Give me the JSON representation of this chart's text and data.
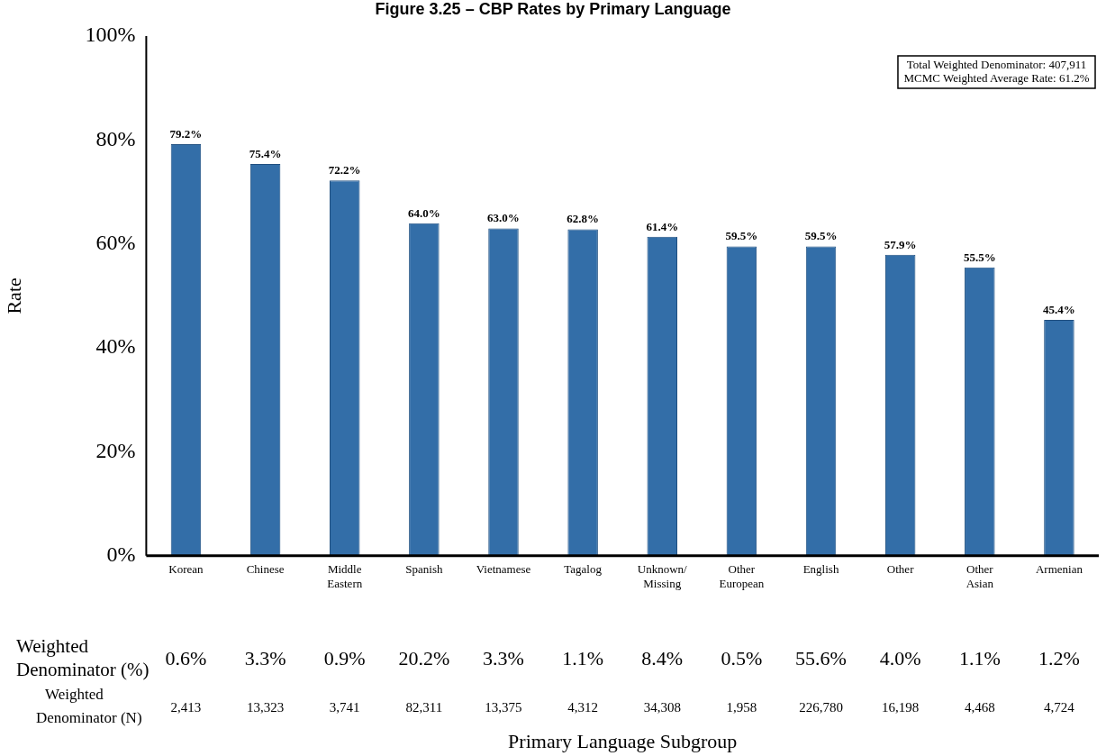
{
  "chart_data": {
    "type": "bar",
    "title": "Figure 3.25 – CBP Rates by Primary Language",
    "ylabel": "Rate",
    "categories": [
      "Korean",
      "Chinese",
      "Middle Eastern",
      "Spanish",
      "Vietnamese",
      "Tagalog",
      "Unknown/Missing",
      "Other European",
      "English",
      "Other",
      "Other Asian",
      "Armenian"
    ],
    "values": [
      79.2,
      75.4,
      72.2,
      64.0,
      63.0,
      62.8,
      61.4,
      59.5,
      59.5,
      57.9,
      55.5,
      45.4
    ],
    "value_labels": [
      "79.2%",
      "75.4%",
      "72.2%",
      "64.0%",
      "63.0%",
      "62.8%",
      "61.4%",
      "59.5%",
      "59.5%",
      "57.9%",
      "55.5%",
      "45.4%"
    ],
    "color": "#336ea8",
    "ylim": [
      0,
      100
    ],
    "yticks": [
      {
        "value": 0,
        "label": "0%"
      },
      {
        "value": 20,
        "label": "20%"
      },
      {
        "value": 40,
        "label": "40%"
      },
      {
        "value": 60,
        "label": "60%"
      },
      {
        "value": 80,
        "label": "80%"
      },
      {
        "value": 100,
        "label": "100%"
      }
    ],
    "grid": false,
    "legend": false,
    "annotations": [
      "Weighted Denominator (%)",
      "Weighted Denominator (N)",
      "Total Weighted Denominator: 407,911",
      "MCMC Weighted Average Rate: 61.2%",
      "Primary Language Subgroup",
      "0.6%",
      "3.3%",
      "0.9%",
      "20.2%",
      "3.3%",
      "1.1%",
      "8.4%",
      "0.5%",
      "55.6%",
      "4.0%",
      "1.1%",
      "1.2%",
      "2,413",
      "13,323",
      "3,741",
      "82,311",
      "13,375",
      "4,312",
      "34,308",
      "1,958",
      "226,780",
      "16,198",
      "4,468",
      "4,724"
    ]
  }
}
